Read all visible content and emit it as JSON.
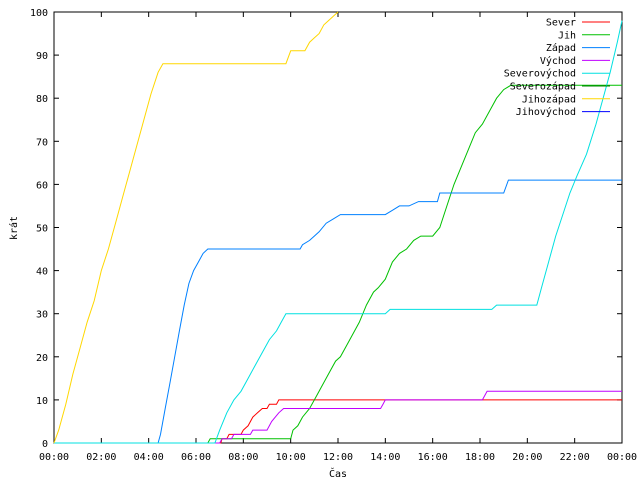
{
  "chart_data": {
    "type": "line",
    "title": "",
    "xlabel": "Čas",
    "ylabel": "krát",
    "x_unit": "hours",
    "xlim": [
      0,
      24
    ],
    "ylim": [
      0,
      100
    ],
    "x_ticks": [
      0,
      2,
      4,
      6,
      8,
      10,
      12,
      14,
      16,
      18,
      20,
      22,
      24
    ],
    "x_tick_labels": [
      "00:00",
      "02:00",
      "04:00",
      "06:00",
      "08:00",
      "10:00",
      "12:00",
      "14:00",
      "16:00",
      "18:00",
      "20:00",
      "22:00",
      "00:00"
    ],
    "y_ticks": [
      0,
      10,
      20,
      30,
      40,
      50,
      60,
      70,
      80,
      90,
      100
    ],
    "y_tick_labels": [
      "0",
      "10",
      "20",
      "30",
      "40",
      "50",
      "60",
      "70",
      "80",
      "90",
      "100"
    ],
    "grid": false,
    "legend_position": "top-right",
    "series": [
      {
        "name": "Sever",
        "color": "#ff0000",
        "points": [
          [
            0,
            0
          ],
          [
            7.05,
            0
          ],
          [
            7.1,
            1
          ],
          [
            7.3,
            1
          ],
          [
            7.4,
            2
          ],
          [
            7.9,
            2
          ],
          [
            8.0,
            3
          ],
          [
            8.2,
            4
          ],
          [
            8.4,
            6
          ],
          [
            8.6,
            7
          ],
          [
            8.8,
            8
          ],
          [
            9.0,
            8
          ],
          [
            9.1,
            9
          ],
          [
            9.4,
            9
          ],
          [
            9.5,
            10
          ],
          [
            24,
            10
          ]
        ]
      },
      {
        "name": "Jih",
        "color": "#00c000",
        "points": [
          [
            0,
            0
          ],
          [
            6.5,
            0
          ],
          [
            6.6,
            1
          ],
          [
            10.0,
            1
          ],
          [
            10.1,
            3
          ],
          [
            10.3,
            4
          ],
          [
            10.5,
            6
          ],
          [
            10.8,
            8
          ],
          [
            11.1,
            11
          ],
          [
            11.3,
            13
          ],
          [
            11.6,
            16
          ],
          [
            11.9,
            19
          ],
          [
            12.1,
            20
          ],
          [
            12.4,
            23
          ],
          [
            12.7,
            26
          ],
          [
            12.9,
            28
          ],
          [
            13.2,
            32
          ],
          [
            13.5,
            35
          ],
          [
            13.7,
            36
          ],
          [
            14.0,
            38
          ],
          [
            14.3,
            42
          ],
          [
            14.6,
            44
          ],
          [
            14.9,
            45
          ],
          [
            15.2,
            47
          ],
          [
            15.5,
            48
          ],
          [
            16.0,
            48
          ],
          [
            16.3,
            50
          ],
          [
            16.6,
            55
          ],
          [
            16.9,
            60
          ],
          [
            17.2,
            64
          ],
          [
            17.5,
            68
          ],
          [
            17.8,
            72
          ],
          [
            18.1,
            74
          ],
          [
            18.4,
            77
          ],
          [
            18.7,
            80
          ],
          [
            19.0,
            82
          ],
          [
            19.3,
            83
          ],
          [
            24,
            83
          ]
        ]
      },
      {
        "name": "Západ",
        "color": "#0080ff",
        "points": [
          [
            0,
            0
          ],
          [
            4.4,
            0
          ],
          [
            4.5,
            2
          ],
          [
            4.7,
            8
          ],
          [
            4.9,
            14
          ],
          [
            5.1,
            20
          ],
          [
            5.3,
            26
          ],
          [
            5.5,
            32
          ],
          [
            5.7,
            37
          ],
          [
            5.9,
            40
          ],
          [
            6.1,
            42
          ],
          [
            6.3,
            44
          ],
          [
            6.5,
            45
          ],
          [
            10.4,
            45
          ],
          [
            10.5,
            46
          ],
          [
            10.8,
            47
          ],
          [
            11.0,
            48
          ],
          [
            11.2,
            49
          ],
          [
            11.5,
            51
          ],
          [
            11.8,
            52
          ],
          [
            12.1,
            53
          ],
          [
            14.0,
            53
          ],
          [
            14.3,
            54
          ],
          [
            14.6,
            55
          ],
          [
            15.0,
            55
          ],
          [
            15.4,
            56
          ],
          [
            16.2,
            56
          ],
          [
            16.3,
            58
          ],
          [
            19.0,
            58
          ],
          [
            19.2,
            61
          ],
          [
            24,
            61
          ]
        ]
      },
      {
        "name": "Východ",
        "color": "#c000ff",
        "points": [
          [
            0,
            0
          ],
          [
            7.0,
            0
          ],
          [
            7.1,
            1
          ],
          [
            7.5,
            1
          ],
          [
            7.6,
            2
          ],
          [
            8.3,
            2
          ],
          [
            8.4,
            3
          ],
          [
            9.0,
            3
          ],
          [
            9.2,
            5
          ],
          [
            9.5,
            7
          ],
          [
            9.7,
            8
          ],
          [
            13.8,
            8
          ],
          [
            13.9,
            9
          ],
          [
            14.0,
            10
          ],
          [
            18.1,
            10
          ],
          [
            18.3,
            12
          ],
          [
            24,
            12
          ]
        ]
      },
      {
        "name": "Severovýchod",
        "color": "#00e0e0",
        "points": [
          [
            0,
            0
          ],
          [
            6.8,
            0
          ],
          [
            7.0,
            3
          ],
          [
            7.3,
            7
          ],
          [
            7.6,
            10
          ],
          [
            7.9,
            12
          ],
          [
            8.2,
            15
          ],
          [
            8.5,
            18
          ],
          [
            8.8,
            21
          ],
          [
            9.1,
            24
          ],
          [
            9.4,
            26
          ],
          [
            9.6,
            28
          ],
          [
            9.8,
            30
          ],
          [
            14.0,
            30
          ],
          [
            14.2,
            31
          ],
          [
            18.5,
            31
          ],
          [
            18.7,
            32
          ],
          [
            20.4,
            32
          ],
          [
            20.6,
            36
          ],
          [
            20.9,
            42
          ],
          [
            21.2,
            48
          ],
          [
            21.5,
            53
          ],
          [
            21.8,
            58
          ],
          [
            22.1,
            62
          ],
          [
            22.5,
            67
          ],
          [
            22.9,
            74
          ],
          [
            23.2,
            80
          ],
          [
            23.5,
            86
          ],
          [
            23.8,
            93
          ],
          [
            24.0,
            98
          ]
        ]
      },
      {
        "name": "Severozápad",
        "color": "#008000",
        "points": []
      },
      {
        "name": "Jihozápad",
        "color": "#ffd700",
        "points": [
          [
            0,
            0
          ],
          [
            0.2,
            3
          ],
          [
            0.5,
            9
          ],
          [
            0.8,
            16
          ],
          [
            1.1,
            22
          ],
          [
            1.4,
            28
          ],
          [
            1.7,
            33
          ],
          [
            2.0,
            40
          ],
          [
            2.3,
            45
          ],
          [
            2.6,
            51
          ],
          [
            2.9,
            57
          ],
          [
            3.2,
            63
          ],
          [
            3.5,
            69
          ],
          [
            3.8,
            75
          ],
          [
            4.1,
            81
          ],
          [
            4.4,
            86
          ],
          [
            4.6,
            88
          ],
          [
            9.8,
            88
          ],
          [
            10.0,
            91
          ],
          [
            10.6,
            91
          ],
          [
            10.8,
            93
          ],
          [
            11.0,
            94
          ],
          [
            11.2,
            95
          ],
          [
            11.4,
            97
          ],
          [
            11.6,
            98
          ],
          [
            11.8,
            99
          ],
          [
            12.0,
            100
          ]
        ]
      },
      {
        "name": "Jihovýchod",
        "color": "#0000ff",
        "points": []
      }
    ]
  }
}
